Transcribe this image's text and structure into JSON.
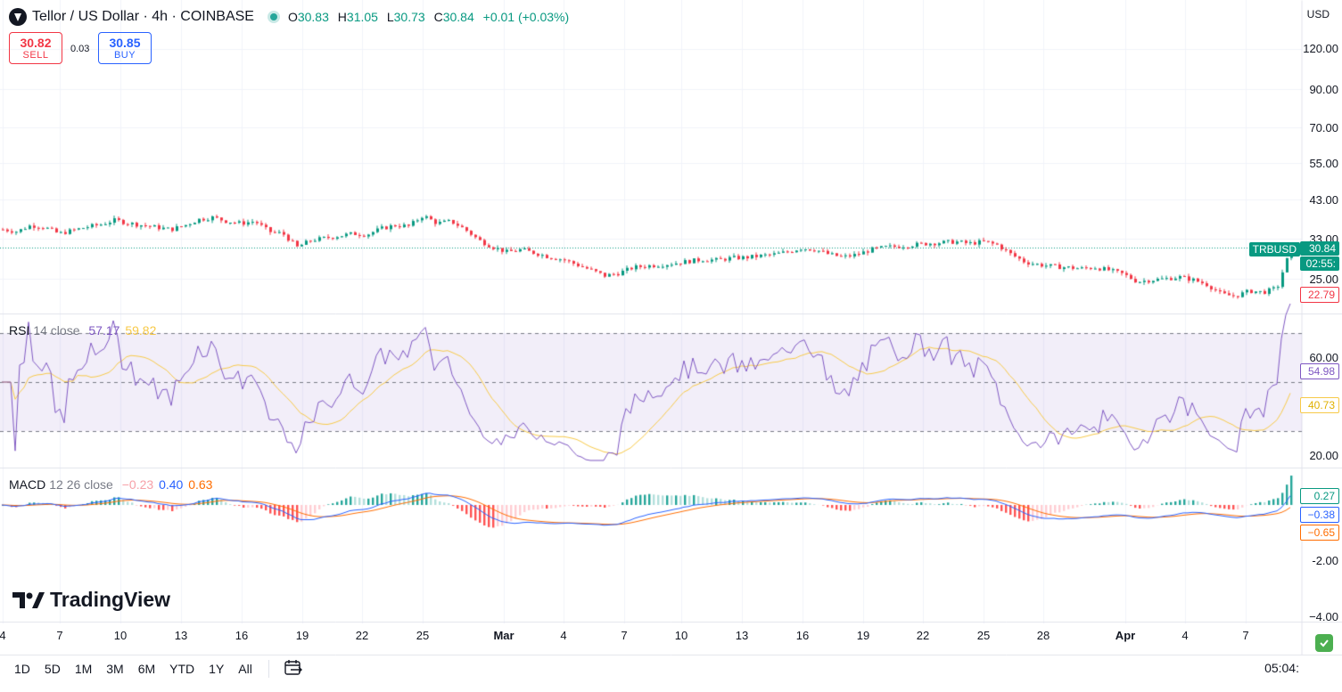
{
  "header": {
    "title": "Tellor / US Dollar · 4h · COINBASE",
    "ohlc": [
      {
        "key": "O",
        "value": "30.83"
      },
      {
        "key": "H",
        "value": "31.05"
      },
      {
        "key": "L",
        "value": "30.73"
      },
      {
        "key": "C",
        "value": "30.84"
      },
      {
        "key": "",
        "value": "+0.01 (+0.03%)"
      }
    ]
  },
  "trade": {
    "sell_price": "30.82",
    "sell_label": "SELL",
    "spread": "0.03",
    "buy_price": "30.85",
    "buy_label": "BUY"
  },
  "currency": "USD",
  "price_axis": [
    "120.00",
    "90.00",
    "70.00",
    "55.00",
    "43.00",
    "33.00",
    "25.00"
  ],
  "price_badges": {
    "symbol": "TRBUSD",
    "last": "30.84",
    "countdown": "02:55:",
    "low_marker": "22.79"
  },
  "rsi": {
    "name": "RSI",
    "params": "14 close",
    "value": "57.17",
    "ma_value": "59.82",
    "axis": [
      "60.00",
      "20.00"
    ],
    "badge_rsi": "54.98",
    "badge_ma": "40.73",
    "color_line": "#7e57c2",
    "color_ma": "#f7c948"
  },
  "macd": {
    "name": "MACD",
    "params": "12 26 close",
    "hist": "−0.23",
    "macd_value": "0.40",
    "signal_value": "0.63",
    "axis": [
      "-2.00",
      "−4.00"
    ],
    "badge_hist": "0.27",
    "badge_macd": "−0.38",
    "badge_signal": "−0.65",
    "color_macd": "#2962ff",
    "color_signal": "#ff6d00"
  },
  "time_axis": [
    "4",
    "7",
    "10",
    "13",
    "16",
    "19",
    "22",
    "25",
    "Mar",
    "4",
    "7",
    "10",
    "13",
    "16",
    "19",
    "22",
    "25",
    "28",
    "Apr",
    "4",
    "7"
  ],
  "timeframes": [
    "1D",
    "5D",
    "1M",
    "3M",
    "6M",
    "YTD",
    "1Y",
    "All"
  ],
  "clock": "05:04:",
  "brand": "TradingView",
  "colors": {
    "up": "#089981",
    "down": "#f23645",
    "accent": "#2962ff"
  },
  "chart_data": {
    "type": "candlestick",
    "price_axis_ticks": [
      120,
      90,
      70,
      55,
      43,
      33,
      25
    ],
    "last_price": 30.84,
    "y_scale": "log",
    "close_path": [
      35.0,
      34.5,
      36.0,
      35.5,
      34.0,
      34.8,
      35.6,
      36.2,
      37.3,
      36.5,
      36.0,
      35.5,
      35.0,
      36.0,
      37.5,
      38.0,
      37.0,
      36.5,
      37.0,
      34.5,
      34.0,
      31.0,
      32.5,
      33.0,
      33.5,
      34.0,
      33.8,
      35.2,
      36.0,
      35.8,
      38.5,
      36.5,
      37.0,
      35.0,
      32.5,
      31.0,
      30.0,
      30.5,
      29.8,
      29.0,
      28.5,
      27.5,
      26.5,
      25.5,
      26.0,
      27.0,
      27.3,
      27.5,
      27.8,
      28.2,
      28.5,
      28.4,
      28.8,
      28.9,
      29.2,
      29.5,
      30.0,
      30.8,
      30.5,
      29.5,
      29.0,
      29.5,
      30.5,
      31.0,
      31.2,
      31.5,
      31.8,
      32.0,
      32.2,
      31.8,
      32.2,
      31.5,
      29.5,
      28.0,
      27.5,
      27.2,
      27.0,
      26.8,
      27.0,
      26.5,
      25.8,
      24.5,
      24.8,
      25.0,
      25.3,
      24.8,
      24.0,
      22.5,
      22.2,
      23.0,
      22.8,
      23.5,
      30.84
    ]
  }
}
